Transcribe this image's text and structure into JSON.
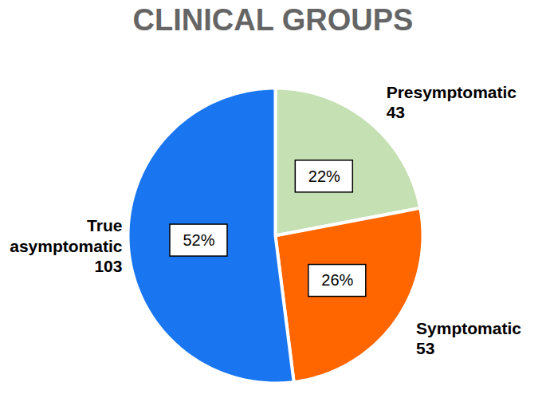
{
  "chart_data": {
    "type": "pie",
    "title": "CLINICAL GROUPS",
    "categories": [
      "Presymptomatic",
      "Symptomatic",
      "True asymptomatic"
    ],
    "values": [
      22,
      26,
      52
    ],
    "value_labels": [
      "22%",
      "26%",
      "52%"
    ],
    "counts": [
      43,
      53,
      103
    ],
    "colors": [
      "#c5e0b3",
      "#ff6600",
      "#1976f0"
    ],
    "data_labels": true
  }
}
